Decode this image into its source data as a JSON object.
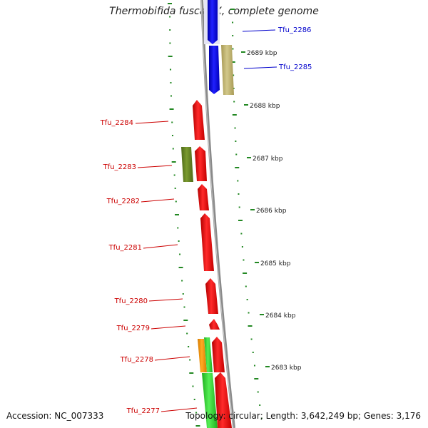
{
  "title": "Thermobifida fusca YX, complete genome",
  "accession": "Accession: NC_007333",
  "stats": "Topology: circular; Length: 3,642,249 bp; Genes: 3,176",
  "colors": {
    "forward_cds": "#ff0000",
    "reverse_cds": "#0000ff",
    "rna_khaki": "#c8be78",
    "olive": "#6e8c28",
    "green": "#33dd33",
    "orange": "#ff9900",
    "tick_green": "#228822",
    "backbone": "#888888",
    "label_red": "#cc0000",
    "label_blue": "#0000cc"
  },
  "ruler_labels": [
    {
      "text": "2689 kbp"
    },
    {
      "text": "2688 kbp"
    },
    {
      "text": "2687 kbp"
    },
    {
      "text": "2686 kbp"
    },
    {
      "text": "2685 kbp"
    },
    {
      "text": "2684 kbp"
    },
    {
      "text": "2683 kbp"
    }
  ],
  "gene_labels": [
    {
      "text": "Tfu_2286",
      "color": "blue"
    },
    {
      "text": "Tfu_2285",
      "color": "blue"
    },
    {
      "text": "Tfu_2284",
      "color": "red"
    },
    {
      "text": "Tfu_2283",
      "color": "red"
    },
    {
      "text": "Tfu_2282",
      "color": "red"
    },
    {
      "text": "Tfu_2281",
      "color": "red"
    },
    {
      "text": "Tfu_2280",
      "color": "red"
    },
    {
      "text": "Tfu_2279",
      "color": "red"
    },
    {
      "text": "Tfu_2278",
      "color": "red"
    },
    {
      "text": "Tfu_2277",
      "color": "red"
    }
  ]
}
